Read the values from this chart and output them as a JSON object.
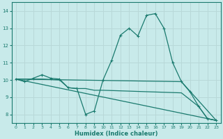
{
  "xlabel": "Humidex (Indice chaleur)",
  "xlim": [
    -0.5,
    23.5
  ],
  "ylim": [
    7.5,
    14.5
  ],
  "yticks": [
    8,
    9,
    10,
    11,
    12,
    13,
    14
  ],
  "xticks": [
    0,
    1,
    2,
    3,
    4,
    5,
    6,
    7,
    8,
    9,
    10,
    11,
    12,
    13,
    14,
    15,
    16,
    17,
    18,
    19,
    20,
    21,
    22,
    23
  ],
  "bg_color": "#c8eaea",
  "line_color": "#1a7a6e",
  "grid_color": "#b8d8d8",
  "lines": [
    {
      "x": [
        0,
        1,
        2,
        3,
        4,
        5,
        6,
        7,
        8,
        9,
        10,
        11,
        12,
        13,
        14,
        15,
        16,
        17,
        18,
        19,
        20,
        21,
        22,
        23
      ],
      "y": [
        10.05,
        9.9,
        10.1,
        10.3,
        10.1,
        10.05,
        9.55,
        9.5,
        8.0,
        8.2,
        10.0,
        11.15,
        12.6,
        13.0,
        12.55,
        13.75,
        13.85,
        13.0,
        11.0,
        9.9,
        9.3,
        8.45,
        7.75,
        7.65
      ],
      "marker": true
    },
    {
      "x": [
        0,
        19,
        23
      ],
      "y": [
        10.05,
        9.9,
        7.65
      ],
      "marker": false
    },
    {
      "x": [
        0,
        23
      ],
      "y": [
        10.05,
        7.65
      ],
      "marker": false
    },
    {
      "x": [
        0,
        2,
        3,
        5,
        6,
        7,
        8,
        9,
        10,
        19,
        21,
        22,
        23
      ],
      "y": [
        10.05,
        10.05,
        10.05,
        10.0,
        9.55,
        9.5,
        9.5,
        9.4,
        9.4,
        9.25,
        8.45,
        7.75,
        7.65
      ],
      "marker": false
    }
  ]
}
